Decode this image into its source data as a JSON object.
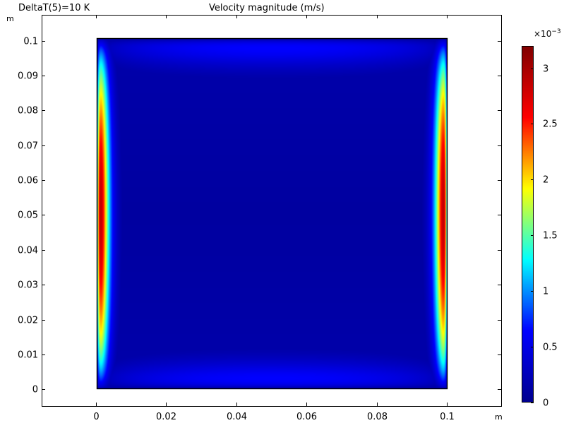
{
  "chart_data": {
    "type": "heatmap",
    "header_left": "DeltaT(5)=10 K",
    "title": "Velocity magnitude (m/s)",
    "x_unit": "m",
    "y_unit": "m",
    "x_ticks": [
      0,
      0.02,
      0.04,
      0.06,
      0.08,
      0.1
    ],
    "x_tick_labels": [
      "0",
      "0.02",
      "0.04",
      "0.06",
      "0.08",
      "0.1"
    ],
    "y_ticks": [
      0,
      0.01,
      0.02,
      0.03,
      0.04,
      0.05,
      0.06,
      0.07,
      0.08,
      0.09,
      0.1
    ],
    "y_tick_labels": [
      "0",
      "0.01",
      "0.02",
      "0.03",
      "0.04",
      "0.05",
      "0.06",
      "0.07",
      "0.08",
      "0.09",
      "0.1"
    ],
    "xlim": [
      -0.0155,
      0.1155
    ],
    "ylim": [
      -0.0048,
      0.1074
    ],
    "domain": {
      "x": [
        0,
        0.1
      ],
      "y": [
        0,
        0.1
      ]
    },
    "colorbar": {
      "multiplier": "×10",
      "exponent": "−3",
      "range": [
        0,
        0.0032
      ],
      "ticks": [
        0,
        0.5,
        1,
        1.5,
        2,
        2.5,
        3
      ],
      "tick_labels": [
        "0",
        "0.5",
        "1",
        "1.5",
        "2",
        "2.5",
        "3"
      ],
      "colormap": [
        "#00008f",
        "#0000ff",
        "#00ffff",
        "#ffff00",
        "#ff0000",
        "#800000"
      ]
    },
    "field_description": "Peak velocity in thin boundary layers along the left and right walls (max ~3.2e-3 m/s near mid-height), weaker flow along top and bottom walls, near-stagnant core (~0.1e-3 m/s)."
  }
}
